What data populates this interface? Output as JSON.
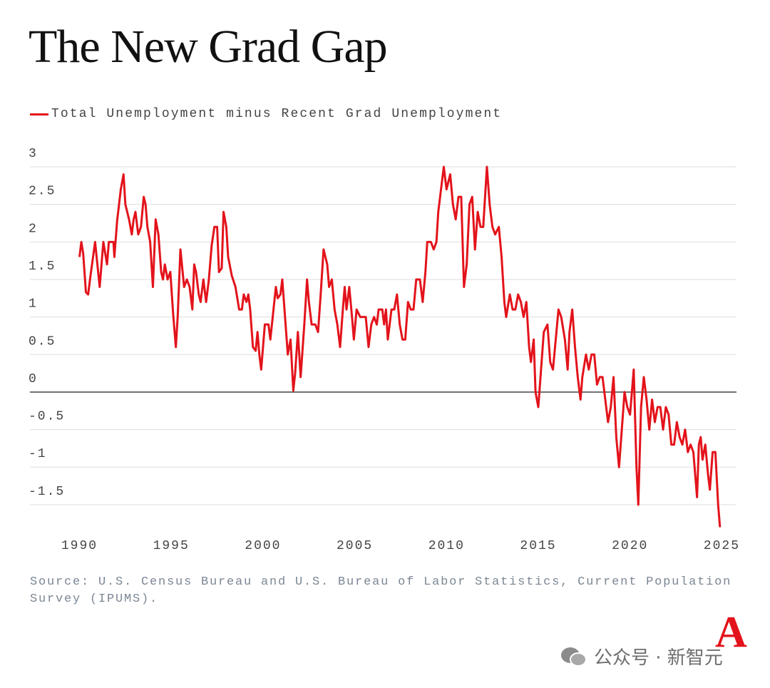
{
  "chart_data": {
    "type": "line",
    "title": "The New Grad Gap",
    "source": "Source: U.S. Census Bureau and U.S. Bureau of Labor Statistics, Current Population Survey (IPUMS).",
    "logo": "A",
    "watermark": "公众号 · 新智元",
    "x": [
      1990.0,
      1990.1,
      1990.2,
      1990.35,
      1990.47,
      1990.6,
      1990.85,
      1991.1,
      1991.3,
      1991.5,
      1991.6,
      1991.85,
      1991.9,
      1992.05,
      1992.25,
      1992.4,
      1992.5,
      1992.7,
      1992.85,
      1992.95,
      1993.05,
      1993.2,
      1993.35,
      1993.5,
      1993.6,
      1993.7,
      1993.85,
      1994.0,
      1994.15,
      1994.3,
      1994.45,
      1994.55,
      1994.65,
      1994.8,
      1994.95,
      1995.1,
      1995.25,
      1995.35,
      1995.5,
      1995.7,
      1995.85,
      1996.0,
      1996.15,
      1996.25,
      1996.35,
      1996.5,
      1996.6,
      1996.75,
      1996.9,
      1997.05,
      1997.2,
      1997.35,
      1997.5,
      1997.6,
      1997.75,
      1997.85,
      1998.0,
      1998.1,
      1998.3,
      1998.5,
      1998.7,
      1998.85,
      1998.95,
      1999.1,
      1999.2,
      1999.3,
      1999.45,
      1999.6,
      1999.7,
      1999.8,
      1999.9,
      2000.1,
      2000.3,
      2000.4,
      2000.55,
      2000.7,
      2000.8,
      2000.95,
      2001.05,
      2001.2,
      2001.35,
      2001.5,
      2001.65,
      2001.75,
      2001.9,
      2002.05,
      2002.25,
      2002.4,
      2002.5,
      2002.65,
      2002.85,
      2003.0,
      2003.15,
      2003.3,
      2003.5,
      2003.6,
      2003.75,
      2003.9,
      2004.05,
      2004.2,
      2004.35,
      2004.45,
      2004.55,
      2004.7,
      2004.85,
      2004.95,
      2005.1,
      2005.3,
      2005.4,
      2005.6,
      2005.75,
      2005.9,
      2006.05,
      2006.2,
      2006.3,
      2006.5,
      2006.6,
      2006.7,
      2006.8,
      2007.0,
      2007.15,
      2007.3,
      2007.45,
      2007.6,
      2007.75,
      2007.9,
      2008.05,
      2008.2,
      2008.35,
      2008.55,
      2008.7,
      2008.85,
      2008.95,
      2009.15,
      2009.3,
      2009.45,
      2009.55,
      2009.7,
      2009.85,
      2010.0,
      2010.2,
      2010.35,
      2010.5,
      2010.65,
      2010.8,
      2010.95,
      2011.1,
      2011.25,
      2011.4,
      2011.55,
      2011.7,
      2011.85,
      2012.0,
      2012.2,
      2012.35,
      2012.5,
      2012.65,
      2012.85,
      2013.0,
      2013.15,
      2013.25,
      2013.45,
      2013.6,
      2013.75,
      2013.9,
      2014.05,
      2014.2,
      2014.35,
      2014.5,
      2014.6,
      2014.75,
      2014.85,
      2015.0,
      2015.15,
      2015.3,
      2015.5,
      2015.65,
      2015.8,
      2015.95,
      2016.1,
      2016.25,
      2016.45,
      2016.6,
      2016.7,
      2016.85,
      2017.0,
      2017.15,
      2017.3,
      2017.4,
      2017.6,
      2017.75,
      2017.9,
      2018.05,
      2018.2,
      2018.35,
      2018.5,
      2018.65,
      2018.8,
      2018.95,
      2019.1,
      2019.25,
      2019.4,
      2019.55,
      2019.7,
      2019.85,
      2020.0,
      2020.2,
      2020.35,
      2020.45,
      2020.6,
      2020.75,
      2020.9,
      2021.05,
      2021.2,
      2021.35,
      2021.5,
      2021.65,
      2021.8,
      2021.95,
      2022.1,
      2022.25,
      2022.4,
      2022.55,
      2022.7,
      2022.85,
      2023.0,
      2023.15,
      2023.3,
      2023.45,
      2023.65,
      2023.75,
      2023.85,
      2023.95,
      2024.1,
      2024.25,
      2024.35,
      2024.5,
      2024.65,
      2024.8,
      2024.9
    ],
    "series": [
      {
        "name": "Total Unemployment minus Recent Grad Unemployment",
        "color": "#e3131b",
        "values": [
          1.8,
          2.0,
          1.85,
          1.33,
          1.3,
          1.55,
          2.0,
          1.4,
          2.0,
          1.7,
          2.0,
          2.0,
          1.8,
          2.28,
          2.7,
          2.9,
          2.5,
          2.3,
          2.1,
          2.3,
          2.4,
          2.1,
          2.2,
          2.6,
          2.5,
          2.2,
          2.0,
          1.4,
          2.3,
          2.1,
          1.6,
          1.5,
          1.7,
          1.5,
          1.6,
          1.05,
          0.6,
          1.0,
          1.9,
          1.4,
          1.5,
          1.4,
          1.1,
          1.7,
          1.6,
          1.3,
          1.2,
          1.5,
          1.2,
          1.5,
          1.95,
          2.2,
          2.2,
          1.6,
          1.65,
          2.4,
          2.2,
          1.8,
          1.55,
          1.4,
          1.1,
          1.1,
          1.3,
          1.2,
          1.3,
          1.1,
          0.6,
          0.55,
          0.8,
          0.5,
          0.3,
          0.9,
          0.9,
          0.7,
          1.05,
          1.4,
          1.25,
          1.3,
          1.5,
          1.0,
          0.5,
          0.7,
          0.02,
          0.25,
          0.8,
          0.2,
          0.9,
          1.5,
          1.2,
          0.9,
          0.9,
          0.8,
          1.33,
          1.9,
          1.7,
          1.4,
          1.5,
          1.1,
          0.9,
          0.6,
          1.1,
          1.4,
          1.1,
          1.4,
          1.0,
          0.7,
          1.1,
          1.0,
          1.0,
          1.0,
          0.6,
          0.9,
          1.0,
          0.9,
          1.1,
          1.1,
          0.9,
          1.1,
          0.7,
          1.1,
          1.1,
          1.3,
          0.9,
          0.7,
          0.7,
          1.2,
          1.1,
          1.1,
          1.5,
          1.5,
          1.2,
          1.6,
          2.0,
          2.0,
          1.9,
          2.0,
          2.4,
          2.7,
          3.0,
          2.7,
          2.9,
          2.5,
          2.3,
          2.6,
          2.6,
          1.4,
          1.7,
          2.5,
          2.6,
          1.9,
          2.4,
          2.2,
          2.2,
          3.0,
          2.5,
          2.2,
          2.1,
          2.2,
          1.8,
          1.2,
          1.0,
          1.3,
          1.1,
          1.1,
          1.3,
          1.2,
          1.0,
          1.2,
          0.6,
          0.4,
          0.7,
          0.0,
          -0.2,
          0.3,
          0.8,
          0.9,
          0.4,
          0.3,
          0.7,
          1.1,
          1.0,
          0.7,
          0.3,
          0.8,
          1.1,
          0.6,
          0.2,
          -0.1,
          0.2,
          0.5,
          0.3,
          0.5,
          0.5,
          0.1,
          0.2,
          0.2,
          -0.1,
          -0.4,
          -0.2,
          0.2,
          -0.6,
          -1.0,
          -0.5,
          0.0,
          -0.2,
          -0.3,
          0.3,
          -1.0,
          -1.5,
          -0.2,
          0.2,
          -0.1,
          -0.5,
          -0.1,
          -0.4,
          -0.2,
          -0.2,
          -0.5,
          -0.2,
          -0.3,
          -0.7,
          -0.7,
          -0.4,
          -0.6,
          -0.7,
          -0.5,
          -0.8,
          -0.7,
          -0.8,
          -1.4,
          -0.7,
          -0.6,
          -0.9,
          -0.7,
          -1.1,
          -1.3,
          -0.8,
          -0.8,
          -1.5,
          -1.8
        ]
      }
    ],
    "xlim": [
      1987.3,
      2025.8
    ],
    "xticks": [
      1990,
      1995,
      2000,
      2005,
      2010,
      2015,
      2020,
      2025
    ],
    "ylim": [
      -1.9,
      3.1
    ],
    "yticks": [
      3,
      2.5,
      2,
      1.5,
      1,
      0.5,
      0,
      -0.5,
      -1,
      -1.5
    ],
    "grid": true
  }
}
